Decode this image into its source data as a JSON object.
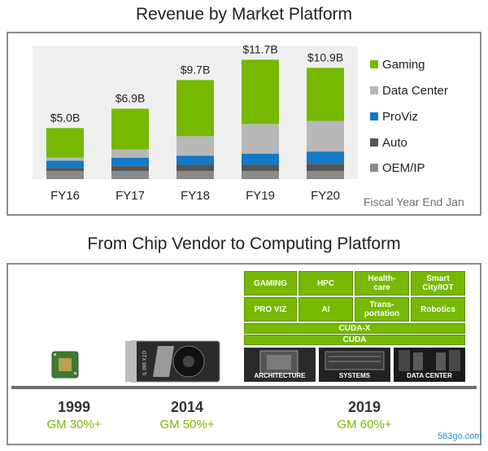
{
  "chart_data": {
    "type": "bar",
    "stacked": true,
    "title": "Revenue by Market Platform",
    "categories": [
      "FY16",
      "FY17",
      "FY18",
      "FY19",
      "FY20"
    ],
    "totals_label": [
      "$5.0B",
      "$6.9B",
      "$9.7B",
      "$11.7B",
      "$10.9B"
    ],
    "totals": [
      5.0,
      6.9,
      9.7,
      11.7,
      10.9
    ],
    "series": [
      {
        "name": "OEM/IP",
        "color": "#8a8a8a",
        "values": [
          0.8,
          0.8,
          0.8,
          0.8,
          0.8
        ]
      },
      {
        "name": "Auto",
        "color": "#555555",
        "values": [
          0.3,
          0.5,
          0.6,
          0.6,
          0.7
        ]
      },
      {
        "name": "ProViz",
        "color": "#1479c6",
        "values": [
          0.7,
          0.8,
          0.9,
          1.1,
          1.2
        ]
      },
      {
        "name": "Data Center",
        "color": "#b8b8b8",
        "values": [
          0.3,
          0.8,
          1.9,
          2.9,
          3.0
        ]
      },
      {
        "name": "Gaming",
        "color": "#76b900",
        "values": [
          2.9,
          4.0,
          5.5,
          6.3,
          5.2
        ]
      }
    ],
    "legend_order": [
      "Gaming",
      "Data Center",
      "ProViz",
      "Auto",
      "OEM/IP"
    ],
    "xlabel": "Fiscal Year End Jan",
    "ylim": [
      0,
      13
    ],
    "grid": false,
    "legend": "right"
  },
  "section2": {
    "title": "From Chip Vendor to Computing Platform",
    "tiles": [
      "GAMING",
      "HPC",
      "Health-\ncare",
      "Smart\nCity/IOT",
      "PRO VIZ",
      "AI",
      "Trans-\nportation",
      "Robotics"
    ],
    "bars": [
      "CUDA-X",
      "CUDA"
    ],
    "photos": [
      "ARCHITECTURE",
      "SYSTEMS",
      "DATA CENTER"
    ],
    "gpu_card_text": "GTX 980 Ti",
    "milestones": [
      {
        "year": "1999",
        "gm": "GM 30%+"
      },
      {
        "year": "2014",
        "gm": "GM  50%+"
      },
      {
        "year": "2019",
        "gm": "GM  60%+"
      }
    ]
  },
  "watermark": "583go.com"
}
